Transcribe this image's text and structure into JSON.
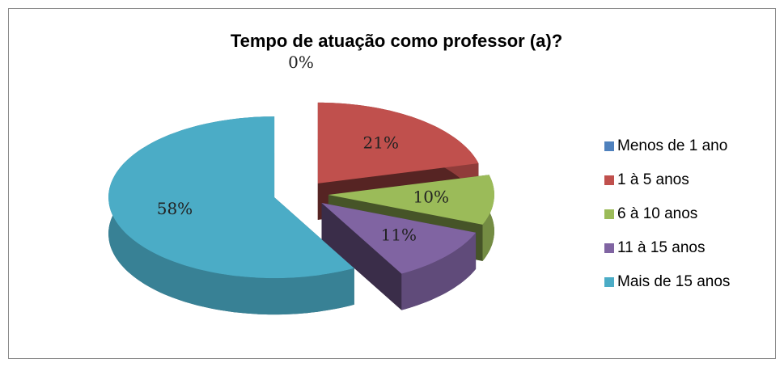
{
  "chart_data": {
    "type": "pie",
    "title": "Tempo de atuação como professor (a)?",
    "categories": [
      "Menos de 1 ano",
      "1 à 5 anos",
      "6 à 10 anos",
      "11 à 15 anos",
      "Mais de 15 anos"
    ],
    "values": [
      0,
      21,
      10,
      11,
      58
    ],
    "value_labels": [
      "0%",
      "21%",
      "10%",
      "11%",
      "58%"
    ],
    "colors": [
      "#4f81bd",
      "#c0504d",
      "#9bbb59",
      "#8064a2",
      "#4bacc6"
    ],
    "legend": "right"
  }
}
